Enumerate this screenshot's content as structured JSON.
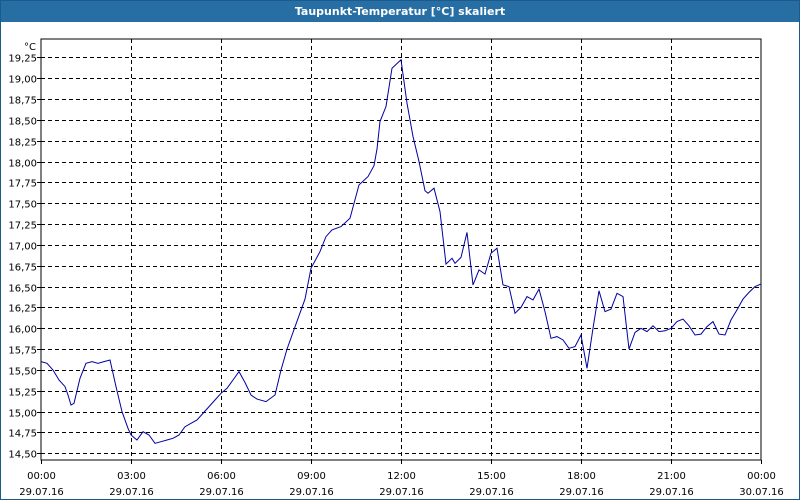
{
  "window": {
    "title": "Taupunkt-Temperatur [°C] skaliert"
  },
  "chart_data": {
    "type": "line",
    "title": "Taupunkt-Temperatur [°C] skaliert",
    "ylabel": "°C",
    "xlabel": "",
    "ylim": [
      14.42,
      19.47
    ],
    "xlim": [
      0,
      24
    ],
    "grid": true,
    "line_color": "#0000a0",
    "yticks": [
      "14,50",
      "14,75",
      "15,00",
      "15,25",
      "15,50",
      "15,75",
      "16,00",
      "16,25",
      "16,50",
      "16,75",
      "17,00",
      "17,25",
      "17,50",
      "17,75",
      "18,00",
      "18,25",
      "18,50",
      "18,75",
      "19,00",
      "19,25"
    ],
    "ytick_values": [
      14.5,
      14.75,
      15.0,
      15.25,
      15.5,
      15.75,
      16.0,
      16.25,
      16.5,
      16.75,
      17.0,
      17.25,
      17.5,
      17.75,
      18.0,
      18.25,
      18.5,
      18.75,
      19.0,
      19.25
    ],
    "xticks": [
      {
        "hour": 0,
        "time": "00:00",
        "date": "29.07.16"
      },
      {
        "hour": 3,
        "time": "03:00",
        "date": "29.07.16"
      },
      {
        "hour": 6,
        "time": "06:00",
        "date": "29.07.16"
      },
      {
        "hour": 9,
        "time": "09:00",
        "date": "29.07.16"
      },
      {
        "hour": 12,
        "time": "12:00",
        "date": "29.07.16"
      },
      {
        "hour": 15,
        "time": "15:00",
        "date": "29.07.16"
      },
      {
        "hour": 18,
        "time": "18:00",
        "date": "29.07.16"
      },
      {
        "hour": 21,
        "time": "21:00",
        "date": "29.07.16"
      },
      {
        "hour": 24,
        "time": "00:00",
        "date": "30.07.16"
      }
    ],
    "series": [
      {
        "x": [
          0,
          0.2,
          0.4,
          0.6,
          0.8,
          0.9,
          1.0,
          1.1,
          1.3,
          1.5,
          1.7,
          1.9,
          2.1,
          2.3,
          2.5,
          2.7,
          2.9,
          3.0,
          3.2,
          3.4,
          3.6,
          3.8,
          4.0,
          4.2,
          4.4,
          4.6,
          4.8,
          5.0,
          5.2,
          5.5,
          5.8,
          6.0,
          6.2,
          6.4,
          6.6,
          6.8,
          7.0,
          7.2,
          7.5,
          7.8,
          8.0,
          8.2,
          8.5,
          8.8,
          9.0,
          9.3,
          9.5,
          9.7,
          10.0,
          10.3,
          10.6,
          10.9,
          11.1,
          11.2,
          11.3,
          11.5,
          11.7,
          12.0,
          12.2,
          12.4,
          12.6,
          12.8,
          12.9,
          13.1,
          13.3,
          13.5,
          13.7,
          13.8,
          14.0,
          14.2,
          14.4,
          14.6,
          14.8,
          15.0,
          15.2,
          15.4,
          15.6,
          15.8,
          16.0,
          16.2,
          16.4,
          16.6,
          16.8,
          17.0,
          17.2,
          17.4,
          17.6,
          17.8,
          18.0,
          18.2,
          18.4,
          18.6,
          18.8,
          19.0,
          19.2,
          19.4,
          19.6,
          19.8,
          20.0,
          20.2,
          20.4,
          20.6,
          20.8,
          21.0,
          21.2,
          21.4,
          21.6,
          21.8,
          22.0,
          22.2,
          22.4,
          22.6,
          22.8,
          23.0,
          23.2,
          23.4,
          23.6,
          23.8,
          24.0
        ],
        "values": [
          15.6,
          15.58,
          15.5,
          15.38,
          15.3,
          15.2,
          15.08,
          15.1,
          15.4,
          15.58,
          15.6,
          15.58,
          15.6,
          15.62,
          15.3,
          15.0,
          14.8,
          14.72,
          14.66,
          14.76,
          14.72,
          14.62,
          14.64,
          14.66,
          14.68,
          14.72,
          14.82,
          14.86,
          14.9,
          15.02,
          15.14,
          15.22,
          15.28,
          15.38,
          15.48,
          15.35,
          15.2,
          15.15,
          15.12,
          15.2,
          15.5,
          15.75,
          16.05,
          16.35,
          16.72,
          16.92,
          17.1,
          17.18,
          17.22,
          17.32,
          17.72,
          17.82,
          17.95,
          18.15,
          18.48,
          18.66,
          19.12,
          19.22,
          18.7,
          18.3,
          18.0,
          17.65,
          17.62,
          17.68,
          17.4,
          16.77,
          16.84,
          16.78,
          16.85,
          17.15,
          16.52,
          16.7,
          16.65,
          16.9,
          16.96,
          16.52,
          16.5,
          16.18,
          16.25,
          16.38,
          16.34,
          16.47,
          16.2,
          15.88,
          15.9,
          15.86,
          15.76,
          15.78,
          15.92,
          15.52,
          16.0,
          16.45,
          16.2,
          16.23,
          16.42,
          16.38,
          15.75,
          15.95,
          16.0,
          15.96,
          16.03,
          15.96,
          15.97,
          16.0,
          16.08,
          16.11,
          16.03,
          15.92,
          15.93,
          16.02,
          16.08,
          15.93,
          15.92,
          16.1,
          16.22,
          16.35,
          16.43,
          16.5,
          16.53
        ]
      }
    ]
  }
}
